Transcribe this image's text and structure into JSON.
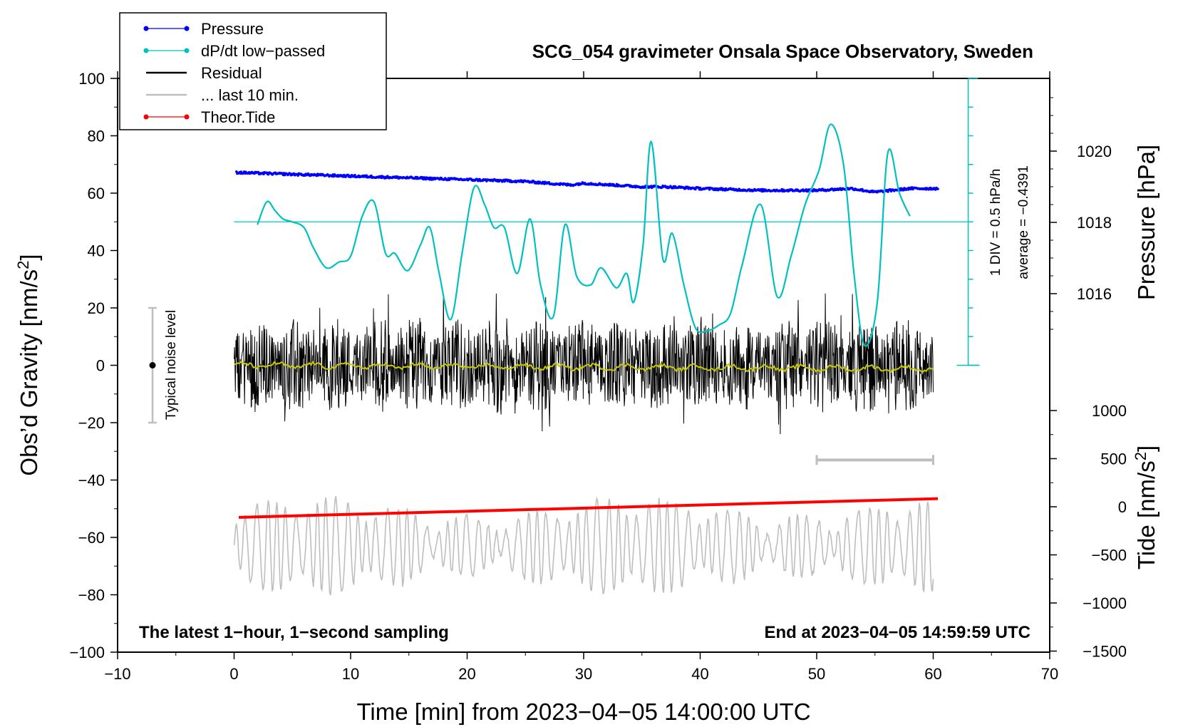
{
  "chart_data": {
    "type": "line",
    "title": "SCG_054 gravimeter Onsala Space Observatory, Sweden",
    "xlabel": "Time [min] from 2023−04−05 14:00:00 UTC",
    "ylabel_left": "Obs’d Gravity [nm/s²]",
    "ylabel_left_text": "Obs’d Gravity [nm/s",
    "ylabel_left_sup": "2",
    "ylabel_left_end": "]",
    "ylabel_right_pressure": "Pressure [hPa]",
    "ylabel_right_tide": "Tide [nm/s²]",
    "ylabel_right_tide_text": "Tide [nm/s",
    "ylabel_right_tide_sup": "2",
    "ylabel_right_tide_end": "]",
    "xlim": [
      -10,
      70
    ],
    "ylim": [
      -100,
      100
    ],
    "pressure_range": [
      1014,
      1022
    ],
    "tide_range": [
      -1500,
      1500
    ],
    "x_ticks": [
      "−10",
      "0",
      "10",
      "20",
      "30",
      "40",
      "50",
      "60",
      "70"
    ],
    "x_tick_values": [
      -10,
      0,
      10,
      20,
      30,
      40,
      50,
      60,
      70
    ],
    "y_ticks": [
      "100",
      "80",
      "60",
      "40",
      "20",
      "0",
      "−20",
      "−40",
      "−60",
      "−80",
      "−100"
    ],
    "y_tick_values": [
      100,
      80,
      60,
      40,
      20,
      0,
      -20,
      -40,
      -60,
      -80,
      -100
    ],
    "pressure_ticks": [
      "1020",
      "1018",
      "1016"
    ],
    "pressure_tick_values": [
      1020,
      1018,
      1016
    ],
    "tide_ticks": [
      "1000",
      "500",
      "0",
      "−500",
      "−1000",
      "−1500"
    ],
    "tide_tick_values": [
      1000,
      500,
      0,
      -500,
      -1000,
      -1500
    ],
    "legend": {
      "position": "top-left",
      "entries": [
        {
          "label": "Pressure",
          "color": "#0000ff",
          "marker": true
        },
        {
          "label": "dP/dt low−passed",
          "color": "#00c0c0",
          "marker": true
        },
        {
          "label": "Residual",
          "color": "#000000",
          "marker": false
        },
        {
          "label": "... last 10 min.",
          "color": "#bebebe",
          "marker": false
        },
        {
          "label": "Theor.Tide",
          "color": "#ff0000",
          "marker": true
        }
      ]
    },
    "annotations": {
      "left_bottom": "The latest 1−hour, 1−second sampling",
      "right_bottom": "End at 2023−04−05 14:59:59 UTC",
      "noise": "Typical noise level",
      "div": "1 DIV = 0.5 hPa/h",
      "average": "average = −0.4391"
    },
    "noise_bar": {
      "x": -7,
      "center": 0,
      "low": -20,
      "high": 20
    },
    "scale_bar_10min": {
      "x_start": 50,
      "x_end": 60,
      "y": -33
    },
    "dpdt_scale": {
      "x": 63,
      "top": 100,
      "bottom": 0,
      "baseline": 50,
      "divisions": 10
    },
    "series": [
      {
        "name": "Pressure",
        "color": "#0000ff",
        "units": "hPa",
        "x": [
          0.2,
          5,
          10,
          15,
          20,
          25,
          28.9,
          30,
          35,
          37,
          40,
          45,
          50,
          53,
          55,
          58,
          60.4
        ],
        "values": [
          1019.4,
          1019.35,
          1019.3,
          1019.25,
          1019.2,
          1019.15,
          1019.05,
          1019.1,
          1019.0,
          1019.0,
          1018.95,
          1018.9,
          1018.9,
          1018.95,
          1018.85,
          1018.95,
          1018.95
        ]
      },
      {
        "name": "dP/dt low−passed",
        "color": "#00c0c0",
        "units": "nm/s² (plot units)",
        "x": [
          2,
          2.8,
          3.5,
          4.2,
          5,
          6,
          6.8,
          7.9,
          9,
          10,
          11,
          12,
          13,
          13.8,
          14.9,
          16,
          16.8,
          17.6,
          18.6,
          19.6,
          20.6,
          21.5,
          22.3,
          23.2,
          24.3,
          25.4,
          26.3,
          27.4,
          28.4,
          29.4,
          30.6,
          31.5,
          32.8,
          33.7,
          34.3,
          35.1,
          35.8,
          36.8,
          37.6,
          38.6,
          39.6,
          40.6,
          41.6,
          42.6,
          43.6,
          45.2,
          46.6,
          47.8,
          49,
          50.2,
          51.2,
          52.3,
          53.2,
          54.1,
          55.2,
          56.1,
          57.1,
          58
        ],
        "values": [
          49,
          57,
          54,
          51,
          50,
          48,
          41,
          34,
          36,
          38,
          52,
          57,
          39,
          39,
          33,
          42,
          48,
          32,
          16,
          40,
          62,
          56,
          48,
          48,
          32,
          51,
          28,
          17,
          49,
          31,
          28,
          34,
          27,
          32,
          22,
          42,
          78,
          37,
          46,
          28,
          13,
          12,
          14,
          18,
          35,
          56,
          24,
          38,
          56,
          68,
          84,
          70,
          32,
          7,
          22,
          74,
          60,
          52
        ]
      },
      {
        "name": "Residual",
        "color": "#000000",
        "units": "nm/s²",
        "x_range": [
          0,
          60
        ],
        "amplitude_range": [
          -24,
          25
        ],
        "mean": 0
      },
      {
        "name": "... last 10 min.",
        "color": "#bebebe",
        "units": "nm/s² (offset, 10−min window overlaid)",
        "x_range": [
          0,
          60
        ],
        "center": -63,
        "amplitude_range": [
          -82,
          -42
        ]
      },
      {
        "name": "Theor.Tide",
        "color": "#ff0000",
        "units": "nm/s²",
        "x": [
          0.4,
          60.4
        ],
        "values": [
          -53,
          -46.5
        ]
      },
      {
        "name": "Residual running mean",
        "color": "#c8c800",
        "units": "nm/s²",
        "x_range": [
          0,
          60
        ],
        "values_approx": 0
      }
    ]
  }
}
